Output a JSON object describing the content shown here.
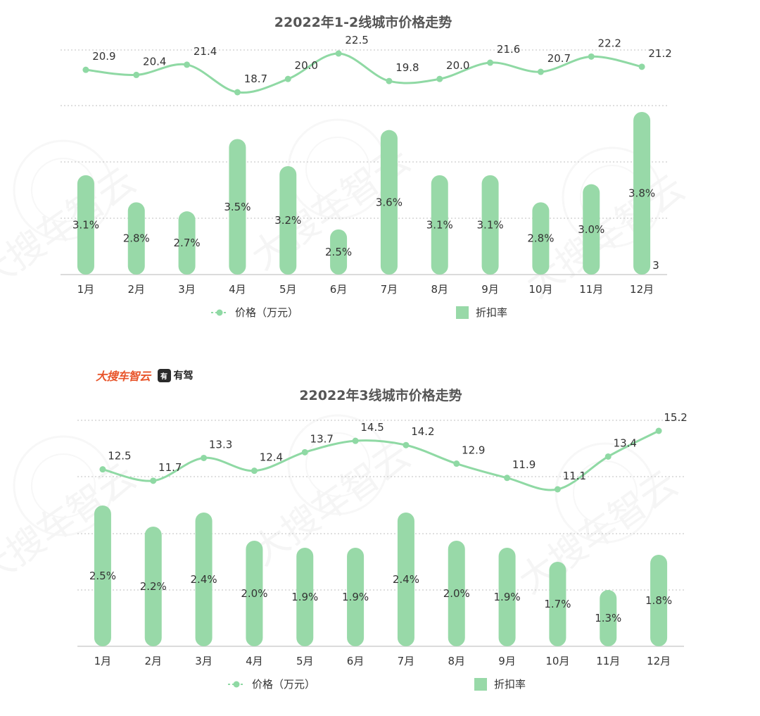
{
  "brand": {
    "name": "大搜车智云",
    "badge": "有",
    "partner": "有驾"
  },
  "watermark": "大搜车智云",
  "colors": {
    "line": "#8fd9a4",
    "bar": "#98d9a8",
    "grid": "#bfbfbf",
    "text": "#333333",
    "title": "#555555"
  },
  "chart_data": [
    {
      "type": "bar+line",
      "title": "22022年1-2线城市价格走势",
      "categories": [
        "1月",
        "2月",
        "3月",
        "4月",
        "5月",
        "6月",
        "7月",
        "8月",
        "9月",
        "10月",
        "11月",
        "12月"
      ],
      "series": [
        {
          "name": "价格（万元）",
          "type": "line",
          "values": [
            20.9,
            20.4,
            21.4,
            18.7,
            20.0,
            22.5,
            19.8,
            20.0,
            21.6,
            20.7,
            22.2,
            21.2
          ],
          "labels": [
            "20.9",
            "20.4",
            "21.4",
            "18.7",
            "20.0",
            "22.5",
            "19.8",
            "20.0",
            "21.6",
            "20.7",
            "22.2",
            "21.2"
          ]
        },
        {
          "name": "折扣率",
          "type": "bar",
          "values": [
            3.1,
            2.8,
            2.7,
            3.5,
            3.2,
            2.5,
            3.6,
            3.1,
            3.1,
            2.8,
            3.0,
            3.8
          ],
          "labels": [
            "3.1%",
            "2.8%",
            "2.7%",
            "3.5%",
            "3.2%",
            "2.5%",
            "3.6%",
            "3.1%",
            "3.1%",
            "2.8%",
            "3.0%",
            "3.8%"
          ]
        }
      ],
      "annotation": "3",
      "legend": "bottom"
    },
    {
      "type": "bar+line",
      "title": "22022年3线城市价格走势",
      "categories": [
        "1月",
        "2月",
        "3月",
        "4月",
        "5月",
        "6月",
        "7月",
        "8月",
        "9月",
        "10月",
        "11月",
        "12月"
      ],
      "series": [
        {
          "name": "价格（万元）",
          "type": "line",
          "values": [
            12.5,
            11.7,
            13.3,
            12.4,
            13.7,
            14.5,
            14.2,
            12.9,
            11.9,
            11.1,
            13.4,
            15.2
          ],
          "labels": [
            "12.5",
            "11.7",
            "13.3",
            "12.4",
            "13.7",
            "14.5",
            "14.2",
            "12.9",
            "11.9",
            "11.1",
            "13.4",
            "15.2"
          ]
        },
        {
          "name": "折扣率",
          "type": "bar",
          "values": [
            2.5,
            2.2,
            2.4,
            2.0,
            1.9,
            1.9,
            2.4,
            2.0,
            1.9,
            1.7,
            1.3,
            1.8
          ],
          "labels": [
            "2.5%",
            "2.2%",
            "2.4%",
            "2.0%",
            "1.9%",
            "1.9%",
            "2.4%",
            "2.0%",
            "1.9%",
            "1.7%",
            "1.3%",
            "1.8%"
          ]
        }
      ],
      "legend": "bottom"
    }
  ]
}
